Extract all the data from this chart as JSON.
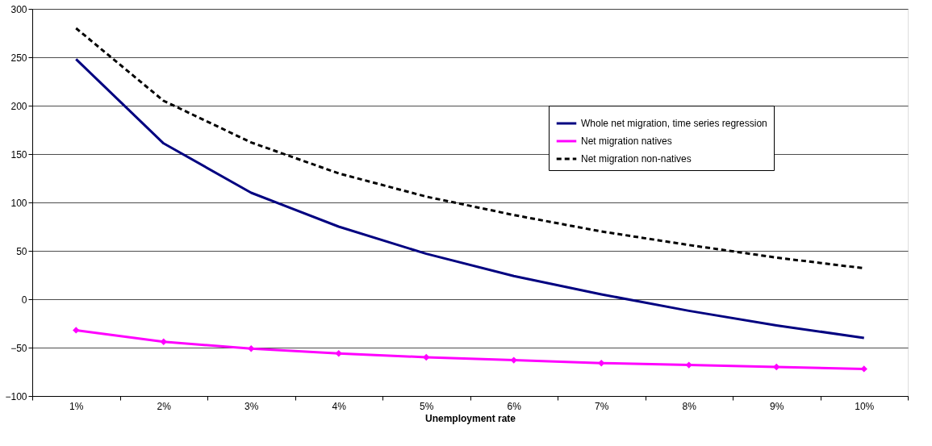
{
  "chart_data": {
    "type": "line",
    "xlabel": "Unemployment rate",
    "categories": [
      "1%",
      "2%",
      "3%",
      "4%",
      "5%",
      "6%",
      "7%",
      "8%",
      "9%",
      "10%"
    ],
    "series": [
      {
        "name": "Whole net migration, time series regression",
        "color": "#000080",
        "line_style": "solid",
        "marker": "none",
        "values": [
          248,
          161,
          110,
          75,
          47,
          24,
          5,
          -12,
          -27,
          -40
        ]
      },
      {
        "name": "Net migration natives",
        "color": "#ff00ff",
        "line_style": "solid",
        "marker": "diamond",
        "values": [
          -32,
          -44,
          -51,
          -56,
          -60,
          -63,
          -66,
          -68,
          -70,
          -72
        ]
      },
      {
        "name": "Net migration non-natives",
        "color": "#000000",
        "line_style": "dashed",
        "marker": "none",
        "values": [
          280,
          205,
          162,
          130,
          106,
          87,
          70,
          56,
          43,
          32
        ]
      }
    ],
    "ylim": [
      -100,
      300
    ],
    "yticks": [
      -100,
      -50,
      0,
      50,
      100,
      150,
      200,
      250,
      300
    ],
    "grid": "y",
    "legend": "right"
  }
}
